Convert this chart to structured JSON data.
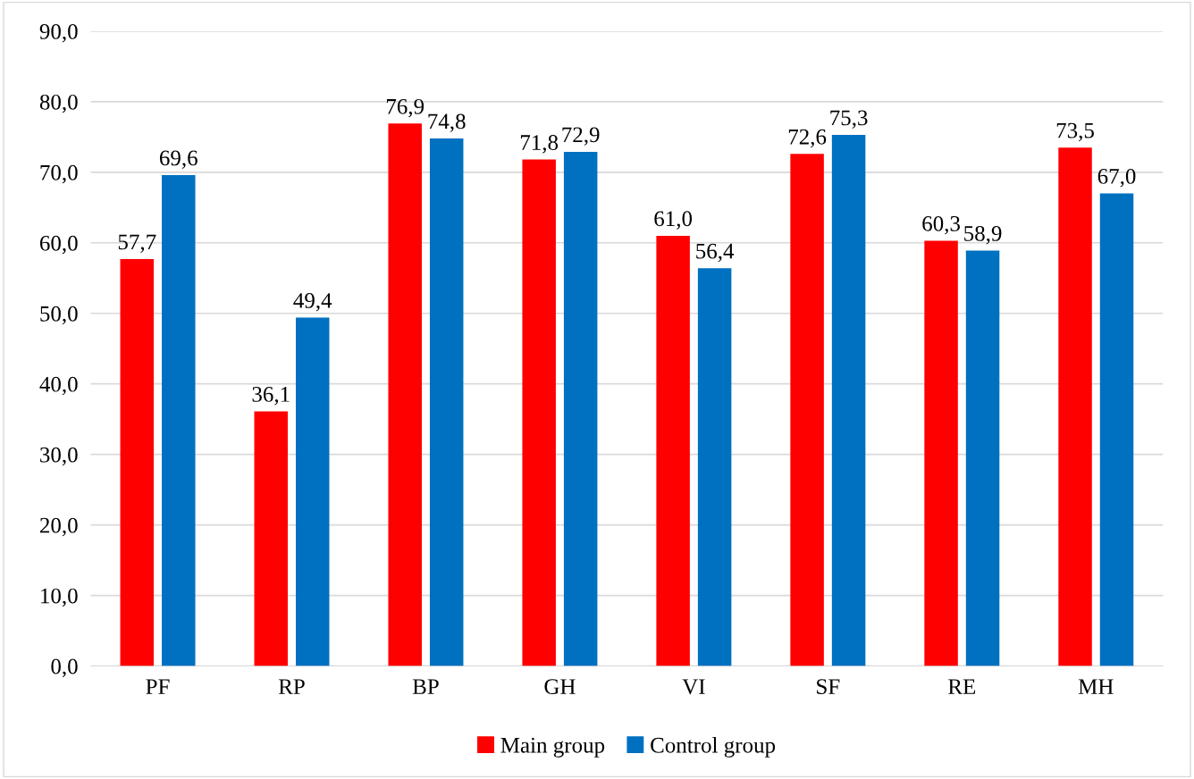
{
  "chart_data": {
    "type": "bar",
    "categories": [
      "PF",
      "RP",
      "BP",
      "GH",
      "VI",
      "SF",
      "RE",
      "MH"
    ],
    "series": [
      {
        "name": "Main group",
        "color": "#ff0000",
        "values": [
          57.7,
          36.1,
          76.9,
          71.8,
          61.0,
          72.6,
          60.3,
          73.5
        ],
        "value_labels": [
          "57,7",
          "36,1",
          "76,9",
          "71,8",
          "61,0",
          "72,6",
          "60,3",
          "73,5"
        ]
      },
      {
        "name": "Control group",
        "color": "#0070c0",
        "values": [
          69.6,
          49.4,
          74.8,
          72.9,
          56.4,
          75.3,
          58.9,
          67.0
        ],
        "value_labels": [
          "69,6",
          "49,4",
          "74,8",
          "72,9",
          "56,4",
          "75,3",
          "58,9",
          "67,0"
        ]
      }
    ],
    "ylim": [
      0,
      90
    ],
    "yticks": [
      {
        "value": 0,
        "label": "0,0"
      },
      {
        "value": 10,
        "label": "10,0"
      },
      {
        "value": 20,
        "label": "20,0"
      },
      {
        "value": 30,
        "label": "30,0"
      },
      {
        "value": 40,
        "label": "40,0"
      },
      {
        "value": 50,
        "label": "50,0"
      },
      {
        "value": 60,
        "label": "60,0"
      },
      {
        "value": 70,
        "label": "70,0"
      },
      {
        "value": 80,
        "label": "80,0"
      },
      {
        "value": 90,
        "label": "90,0"
      }
    ],
    "grid": "y",
    "legend": "bottom"
  }
}
